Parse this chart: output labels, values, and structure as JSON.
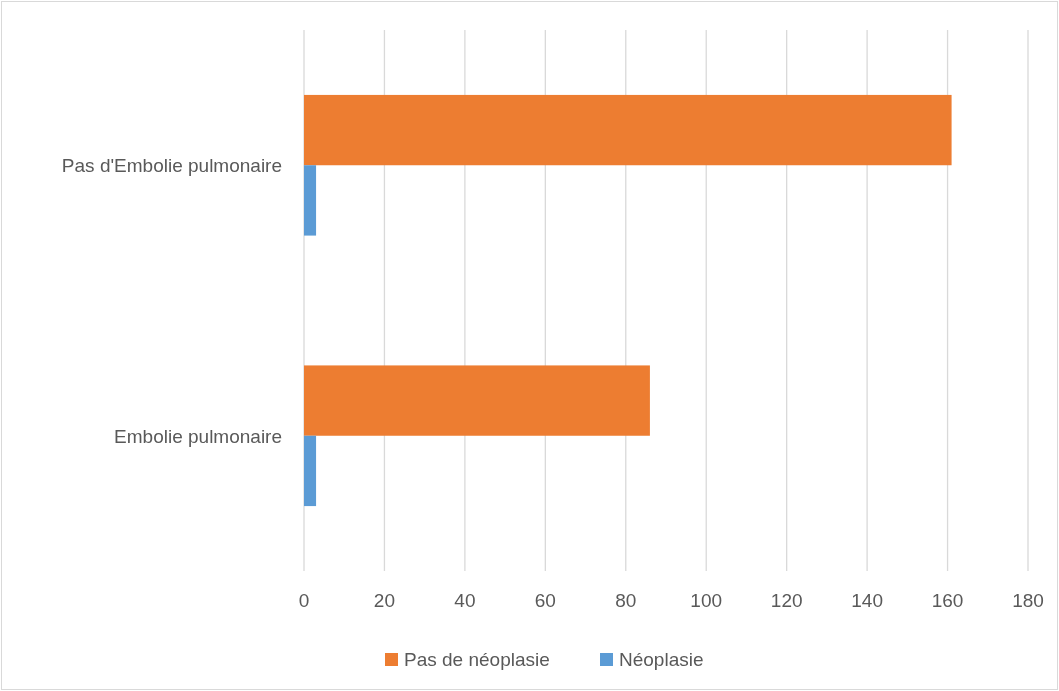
{
  "chart_data": {
    "type": "bar",
    "orientation": "horizontal",
    "categories": [
      "Pas d'Embolie pulmonaire",
      "Embolie pulmonaire"
    ],
    "series": [
      {
        "name": "Pas de néoplasie",
        "color": "#ed7d31",
        "values": [
          161,
          86
        ]
      },
      {
        "name": "Néoplasie",
        "color": "#5b9bd5",
        "values": [
          3,
          3
        ]
      }
    ],
    "xlim": [
      0,
      180
    ],
    "xticks": [
      0,
      20,
      40,
      60,
      80,
      100,
      120,
      140,
      160,
      180
    ],
    "grid": "x",
    "legend": "bottom"
  }
}
